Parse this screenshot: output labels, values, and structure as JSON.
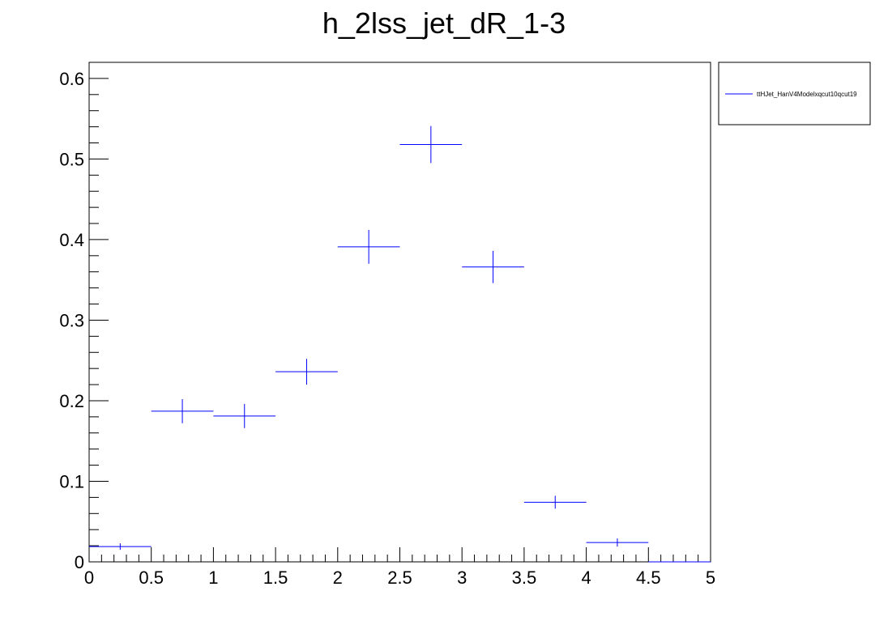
{
  "chart_data": {
    "type": "scatter",
    "title": "h_2lss_jet_dR_1-3",
    "xlabel": "",
    "ylabel": "",
    "xlim": [
      0,
      5
    ],
    "ylim": [
      0,
      0.62
    ],
    "x_ticks": [
      "0",
      "0.5",
      "1",
      "1.5",
      "2",
      "2.5",
      "3",
      "3.5",
      "4",
      "4.5",
      "5"
    ],
    "y_ticks": [
      "0",
      "0.1",
      "0.2",
      "0.3",
      "0.4",
      "0.5",
      "0.6"
    ],
    "grid": false,
    "legend_position": "top-right-outside",
    "series": [
      {
        "name": "ttHJet_HanV4Modelxqcut10qcut19",
        "color": "#0000ff",
        "bins": [
          {
            "x_low": 0.0,
            "x_high": 0.5,
            "y": 0.019,
            "err": 0.004
          },
          {
            "x_low": 0.5,
            "x_high": 1.0,
            "y": 0.187,
            "err": 0.015
          },
          {
            "x_low": 1.0,
            "x_high": 1.5,
            "y": 0.181,
            "err": 0.015
          },
          {
            "x_low": 1.5,
            "x_high": 2.0,
            "y": 0.236,
            "err": 0.016
          },
          {
            "x_low": 2.0,
            "x_high": 2.5,
            "y": 0.391,
            "err": 0.021
          },
          {
            "x_low": 2.5,
            "x_high": 3.0,
            "y": 0.518,
            "err": 0.023
          },
          {
            "x_low": 3.0,
            "x_high": 3.5,
            "y": 0.366,
            "err": 0.02
          },
          {
            "x_low": 3.5,
            "x_high": 4.0,
            "y": 0.074,
            "err": 0.008
          },
          {
            "x_low": 4.0,
            "x_high": 4.5,
            "y": 0.024,
            "err": 0.005
          },
          {
            "x_low": 4.5,
            "x_high": 5.0,
            "y": 0.0,
            "err": 0.0
          }
        ]
      }
    ]
  }
}
